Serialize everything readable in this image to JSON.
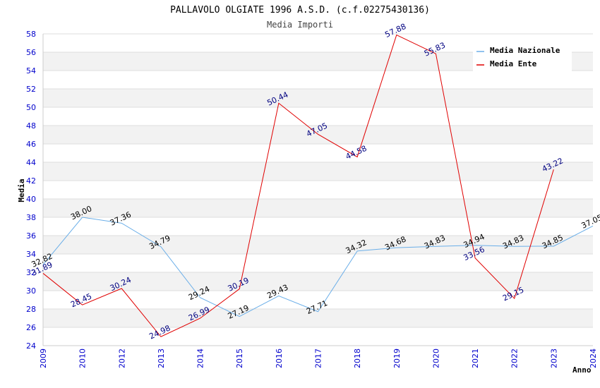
{
  "chart_data": {
    "type": "line",
    "title": "PALLAVOLO OLGIATE 1996 A.S.D. (c.f.02275430136)",
    "subtitle": "Media Importi",
    "xlabel": "Anno",
    "ylabel": "Media",
    "categories": [
      "2009",
      "2010",
      "2012",
      "2013",
      "2014",
      "2015",
      "2016",
      "2017",
      "2018",
      "2019",
      "2020",
      "2021",
      "2022",
      "2023",
      "2024"
    ],
    "ylim": [
      24,
      58
    ],
    "yticks": [
      24,
      26,
      28,
      30,
      32,
      34,
      36,
      38,
      40,
      42,
      44,
      46,
      48,
      50,
      52,
      54,
      56,
      58
    ],
    "grid": true,
    "legend_position": "top-right",
    "series": [
      {
        "name": "Media Nazionale",
        "color": "#6aaee8",
        "values": [
          32.82,
          38.0,
          37.36,
          34.79,
          29.24,
          27.19,
          29.43,
          27.71,
          34.32,
          34.68,
          34.83,
          34.94,
          34.83,
          34.85,
          37.05
        ],
        "labels": [
          "32.82",
          "38.00",
          "37.36",
          "34.79",
          "29.24",
          "27.19",
          "29.43",
          "27.71",
          "34.32",
          "34.68",
          "34.83",
          "34.94",
          "34.83",
          "34.85",
          "37.05"
        ]
      },
      {
        "name": "Media Ente",
        "color": "#e00000",
        "values": [
          31.89,
          28.45,
          30.24,
          24.98,
          26.99,
          30.19,
          50.44,
          47.05,
          44.58,
          57.88,
          55.83,
          33.56,
          29.15,
          43.22,
          null
        ],
        "labels": [
          "31.89",
          "28.45",
          "30.24",
          "24.98",
          "26.99",
          "30.19",
          "50.44",
          "47.05",
          "44.58",
          "57.88",
          "55.83",
          "33.56",
          "29.15",
          "43.22",
          ""
        ]
      }
    ]
  }
}
